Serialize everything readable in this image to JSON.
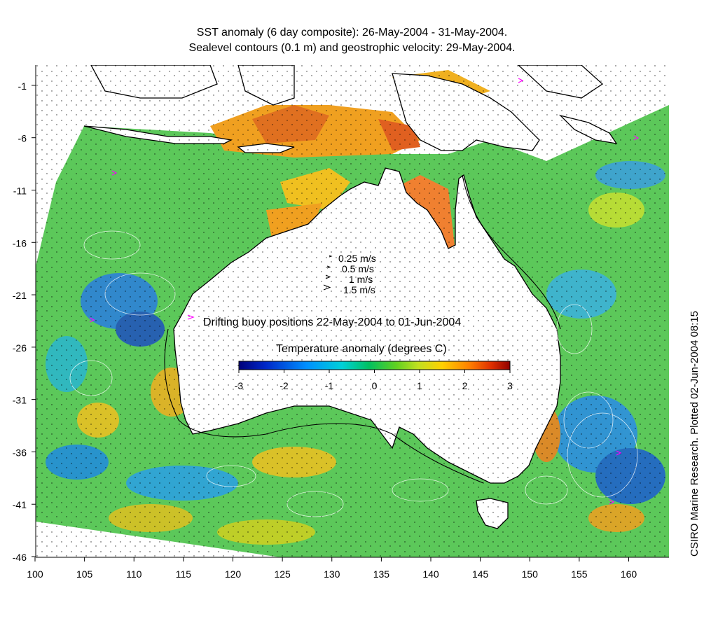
{
  "title": {
    "line1": "SST anomaly (6 day composite): 26-May-2004 - 31-May-2004.",
    "line2": "Sealevel contours (0.1 m) and geostrophic velocity: 29-May-2004."
  },
  "credit": "CSIRO Marine Research. Plotted 02-Jun-2004 08:15",
  "axes": {
    "x_ticks": [
      "100",
      "105",
      "110",
      "115",
      "120",
      "125",
      "130",
      "135",
      "140",
      "145",
      "150",
      "155",
      "160"
    ],
    "y_ticks": [
      "-1",
      "-6",
      "-11",
      "-16",
      "-21",
      "-26",
      "-31",
      "-36",
      "-41",
      "-46"
    ],
    "x_range": [
      100,
      164
    ],
    "y_range": [
      -46,
      1
    ]
  },
  "velocity_legend": [
    "0.25 m/s",
    "0.5 m/s",
    "1 m/s",
    "1.5 m/s"
  ],
  "buoy_legend": "Drifting buoy positions 22-May-2004 to 01-Jun-2004",
  "colorbar": {
    "title": "Temperature anomaly (degrees C)",
    "ticks": [
      "-3",
      "-2",
      "-1",
      "0",
      "1",
      "2",
      "3"
    ],
    "range": [
      -3,
      3
    ],
    "colors": [
      "#00007a",
      "#0028c8",
      "#0090ff",
      "#00d0d8",
      "#00c060",
      "#60d020",
      "#c0e020",
      "#ffd000",
      "#ff8000",
      "#e03000",
      "#900000"
    ]
  },
  "colors": {
    "land": "#ffffff",
    "ocean_base": "#5ac850",
    "buoy": "#ff00ff"
  }
}
